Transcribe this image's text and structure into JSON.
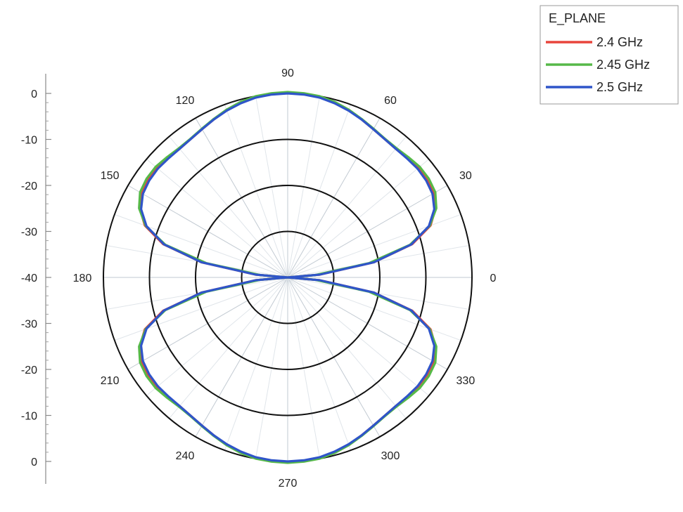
{
  "chart_data": {
    "type": "line",
    "polar": true,
    "legend": {
      "title": "E_PLANE",
      "placement": "top-right"
    },
    "radial_axis": {
      "ticks": [
        0,
        -10,
        -20,
        -30,
        -40
      ],
      "range": [
        -40,
        0
      ]
    },
    "angular_axis": {
      "labels": [
        "0",
        "30",
        "60",
        "90",
        "120",
        "150",
        "180",
        "210",
        "240",
        "270",
        "300",
        "330"
      ]
    },
    "grid": {
      "radial_circles": [
        -10,
        -20,
        -30
      ],
      "spokes_every_deg": 10
    },
    "series": [
      {
        "name": "2.4 GHz",
        "color": "#e8453c",
        "theta": [
          0,
          5,
          10,
          15,
          20,
          25,
          30,
          35,
          40,
          45,
          50,
          55,
          60,
          65,
          70,
          75,
          80,
          85,
          90,
          95,
          100,
          105,
          110,
          115,
          120,
          125,
          130,
          135,
          140,
          145,
          150,
          155,
          160,
          165,
          170,
          175,
          180,
          185,
          190,
          195,
          200,
          205,
          210,
          215,
          220,
          225,
          230,
          235,
          240,
          245,
          250,
          255,
          260,
          265,
          270,
          275,
          280,
          285,
          290,
          295,
          300,
          305,
          310,
          315,
          320,
          325,
          330,
          335,
          340,
          345,
          350,
          355,
          360
        ],
        "r": [
          -40,
          -33,
          -21,
          -12,
          -7,
          -4.6,
          -3.4,
          -3.0,
          -3.0,
          -3.3,
          -3.5,
          -3.3,
          -2.8,
          -2.1,
          -1.3,
          -0.6,
          -0.1,
          0.1,
          0.2,
          0.1,
          -0.1,
          -0.6,
          -1.3,
          -2.1,
          -2.8,
          -3.3,
          -3.5,
          -3.3,
          -3.0,
          -3.0,
          -3.4,
          -4.6,
          -7,
          -12,
          -21,
          -33,
          -40,
          -33,
          -21,
          -12,
          -7,
          -4.6,
          -3.4,
          -3.0,
          -3.0,
          -3.3,
          -3.5,
          -3.3,
          -2.8,
          -2.1,
          -1.3,
          -0.6,
          -0.1,
          0.1,
          0.2,
          0.1,
          -0.1,
          -0.6,
          -1.3,
          -2.1,
          -2.8,
          -3.3,
          -3.5,
          -3.3,
          -3.0,
          -3.0,
          -3.4,
          -4.6,
          -7,
          -12,
          -21,
          -33,
          -40
        ]
      },
      {
        "name": "2.45 GHz",
        "color": "#56b948",
        "theta": [
          0,
          5,
          10,
          15,
          20,
          25,
          30,
          35,
          40,
          45,
          50,
          55,
          60,
          65,
          70,
          75,
          80,
          85,
          90,
          95,
          100,
          105,
          110,
          115,
          120,
          125,
          130,
          135,
          140,
          145,
          150,
          155,
          160,
          165,
          170,
          175,
          180,
          185,
          190,
          195,
          200,
          205,
          210,
          215,
          220,
          225,
          230,
          235,
          240,
          245,
          250,
          255,
          260,
          265,
          270,
          275,
          280,
          285,
          290,
          295,
          300,
          305,
          310,
          315,
          320,
          325,
          330,
          335,
          340,
          345,
          350,
          355,
          360
        ],
        "r": [
          -40,
          -34,
          -22,
          -12.5,
          -7.2,
          -4.4,
          -3.0,
          -2.6,
          -2.6,
          -3.0,
          -3.3,
          -3.2,
          -2.7,
          -2.0,
          -1.2,
          -0.5,
          0.0,
          0.2,
          0.3,
          0.2,
          0.0,
          -0.5,
          -1.2,
          -2.0,
          -2.7,
          -3.2,
          -3.3,
          -3.0,
          -2.6,
          -2.6,
          -3.0,
          -4.4,
          -7.2,
          -12.5,
          -22,
          -34,
          -40,
          -34,
          -22,
          -12.5,
          -7.2,
          -4.4,
          -3.0,
          -2.6,
          -2.6,
          -3.0,
          -3.3,
          -3.2,
          -2.7,
          -2.0,
          -1.2,
          -0.5,
          0.0,
          0.2,
          0.3,
          0.2,
          0.0,
          -0.5,
          -1.2,
          -2.0,
          -2.7,
          -3.2,
          -3.3,
          -3.0,
          -2.6,
          -2.6,
          -3.0,
          -4.4,
          -7.2,
          -12.5,
          -22,
          -34,
          -40
        ]
      },
      {
        "name": "2.5 GHz",
        "color": "#2f55c9",
        "theta": [
          0,
          5,
          10,
          15,
          20,
          25,
          30,
          35,
          40,
          45,
          50,
          55,
          60,
          65,
          70,
          75,
          80,
          85,
          90,
          95,
          100,
          105,
          110,
          115,
          120,
          125,
          130,
          135,
          140,
          145,
          150,
          155,
          160,
          165,
          170,
          175,
          180,
          185,
          190,
          195,
          200,
          205,
          210,
          215,
          220,
          225,
          230,
          235,
          240,
          245,
          250,
          255,
          260,
          265,
          270,
          275,
          280,
          285,
          290,
          295,
          300,
          305,
          310,
          315,
          320,
          325,
          330,
          335,
          340,
          345,
          350,
          355,
          360
        ],
        "r": [
          -40,
          -33,
          -21,
          -12.2,
          -7.4,
          -4.9,
          -3.7,
          -3.3,
          -3.2,
          -3.4,
          -3.5,
          -3.3,
          -2.8,
          -2.1,
          -1.4,
          -0.8,
          -0.3,
          -0.1,
          0.0,
          -0.1,
          -0.3,
          -0.8,
          -1.4,
          -2.1,
          -2.8,
          -3.3,
          -3.5,
          -3.4,
          -3.2,
          -3.3,
          -3.7,
          -4.9,
          -7.4,
          -12.2,
          -21,
          -33,
          -40,
          -33,
          -21,
          -12.2,
          -7.4,
          -4.9,
          -3.7,
          -3.3,
          -3.2,
          -3.4,
          -3.5,
          -3.3,
          -2.8,
          -2.1,
          -1.4,
          -0.8,
          -0.3,
          -0.1,
          0.0,
          -0.1,
          -0.3,
          -0.8,
          -1.4,
          -2.1,
          -2.8,
          -3.3,
          -3.5,
          -3.4,
          -3.2,
          -3.3,
          -3.7,
          -4.9,
          -7.4,
          -12.2,
          -21,
          -33,
          -40
        ]
      }
    ]
  }
}
